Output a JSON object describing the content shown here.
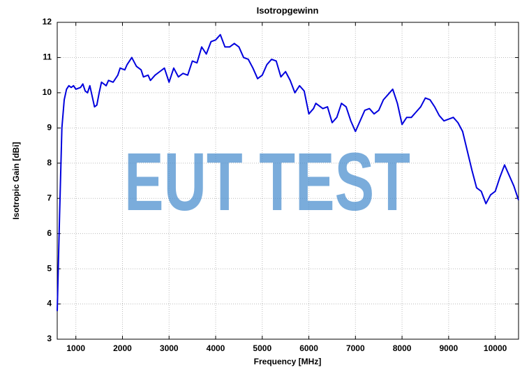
{
  "chart_data": {
    "type": "line",
    "title": "Isotropgewinn",
    "xlabel": "Frequency [MHz]",
    "ylabel": "Isotropic Gain [dBi]",
    "watermark": "EUT TEST",
    "x": [
      600,
      650,
      700,
      750,
      800,
      850,
      900,
      950,
      1000,
      1100,
      1150,
      1200,
      1250,
      1300,
      1350,
      1400,
      1450,
      1500,
      1550,
      1650,
      1700,
      1800,
      1900,
      1950,
      2050,
      2100,
      2200,
      2300,
      2400,
      2450,
      2550,
      2600,
      2700,
      2800,
      2900,
      3000,
      3100,
      3200,
      3300,
      3400,
      3500,
      3600,
      3700,
      3800,
      3900,
      4000,
      4100,
      4200,
      4300,
      4400,
      4500,
      4600,
      4700,
      4800,
      4900,
      5000,
      5100,
      5200,
      5300,
      5400,
      5500,
      5600,
      5700,
      5800,
      5900,
      6000,
      6100,
      6150,
      6300,
      6400,
      6500,
      6600,
      6700,
      6800,
      6900,
      7000,
      7100,
      7200,
      7300,
      7400,
      7500,
      7600,
      7700,
      7800,
      7900,
      8000,
      8100,
      8200,
      8300,
      8400,
      8500,
      8600,
      8700,
      8800,
      8900,
      9000,
      9100,
      9200,
      9300,
      9400,
      9500,
      9600,
      9700,
      9800,
      9900,
      10000,
      10100,
      10200,
      10300,
      10400,
      10500
    ],
    "series": [
      {
        "name": "Isotropic Gain",
        "color": "#0000dd",
        "values": [
          3.8,
          6.5,
          9.0,
          9.8,
          10.1,
          10.2,
          10.15,
          10.2,
          10.1,
          10.15,
          10.25,
          10.05,
          10.0,
          10.2,
          9.9,
          9.6,
          9.65,
          10.0,
          10.3,
          10.2,
          10.35,
          10.3,
          10.5,
          10.7,
          10.65,
          10.8,
          11.0,
          10.75,
          10.65,
          10.45,
          10.5,
          10.35,
          10.5,
          10.6,
          10.7,
          10.3,
          10.7,
          10.45,
          10.55,
          10.5,
          10.9,
          10.85,
          11.3,
          11.1,
          11.45,
          11.5,
          11.65,
          11.3,
          11.3,
          11.4,
          11.3,
          11.0,
          10.95,
          10.7,
          10.4,
          10.5,
          10.8,
          10.95,
          10.9,
          10.45,
          10.6,
          10.35,
          10.0,
          10.2,
          10.05,
          9.4,
          9.55,
          9.7,
          9.55,
          9.6,
          9.15,
          9.3,
          9.7,
          9.6,
          9.2,
          8.9,
          9.2,
          9.5,
          9.55,
          9.4,
          9.5,
          9.8,
          9.95,
          10.1,
          9.7,
          9.1,
          9.3,
          9.3,
          9.45,
          9.6,
          9.85,
          9.8,
          9.6,
          9.35,
          9.2,
          9.25,
          9.3,
          9.15,
          8.9,
          8.35,
          7.8,
          7.3,
          7.2,
          6.85,
          7.1,
          7.2,
          7.6,
          7.95,
          7.65,
          7.35,
          6.95
        ]
      }
    ],
    "xlim": [
      600,
      10500
    ],
    "ylim": [
      3,
      12
    ],
    "xticks": [
      1000,
      2000,
      3000,
      4000,
      5000,
      6000,
      7000,
      8000,
      9000,
      10000
    ],
    "yticks": [
      3,
      4,
      5,
      6,
      7,
      8,
      9,
      10,
      11,
      12
    ],
    "grid": true
  }
}
